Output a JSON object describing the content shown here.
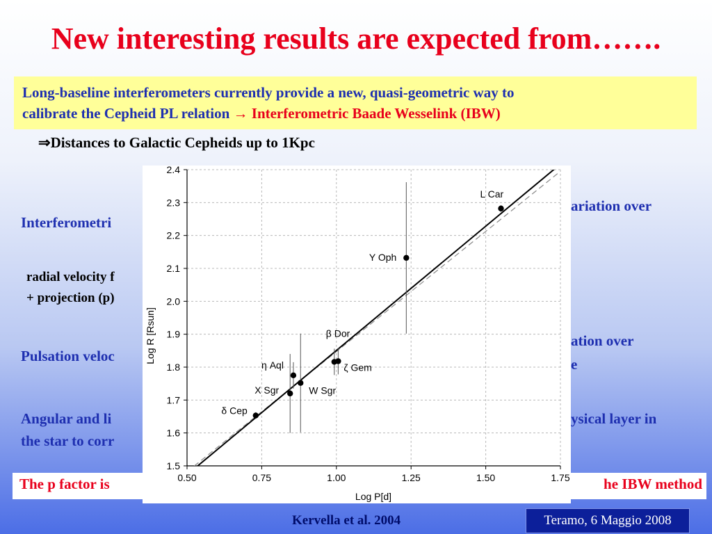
{
  "slide": {
    "title": "New interesting results are expected from…….",
    "intro_line1": "Long-baseline interferometers currently provide a new, quasi-geometric way to",
    "intro_line2_blue": "calibrate the Cepheid PL relation",
    "intro_line2_red": "→ Interferometric Baade Wesselink (IBW)",
    "distance_line": "⇒Distances to Galactic Cepheids up to 1Kpc",
    "left_frag1": "Interferometri",
    "right_frag1": "ariation over",
    "left_frag2a": "radial velocity f",
    "left_frag2b": "+ projection (p)",
    "right_frag2a": "ation over",
    "right_frag2b": "e",
    "left_frag3": "Pulsation veloc",
    "left_frag4a": "Angular and li",
    "left_frag4b": "the star to corr",
    "right_frag4": "ysical layer in",
    "pfactor_left": "The p factor is",
    "pfactor_right": "he IBW method",
    "citation": "Kervella et al. 2004",
    "footer": "Teramo, 6 Maggio 2008"
  },
  "chart_data": {
    "type": "scatter",
    "xlabel": "Log P[d]",
    "ylabel": "Log R [Rsun]",
    "xlim": [
      0.5,
      1.75
    ],
    "ylim": [
      1.5,
      2.4
    ],
    "xticks": [
      "0.50",
      "0.75",
      "1.00",
      "1.25",
      "1.50",
      "1.75"
    ],
    "yticks": [
      "1.5",
      "1.6",
      "1.7",
      "1.8",
      "1.9",
      "2.0",
      "2.1",
      "2.2",
      "2.3",
      "2.4"
    ],
    "points": [
      {
        "name": "δ Cep",
        "x": 0.73,
        "y": 1.653,
        "err": 0.01
      },
      {
        "name": "X Sgr",
        "x": 0.845,
        "y": 1.72,
        "err": 0.12
      },
      {
        "name": "η Aql",
        "x": 0.856,
        "y": 1.775,
        "err": 0.04
      },
      {
        "name": "W Sgr",
        "x": 0.88,
        "y": 1.752,
        "err": 0.15
      },
      {
        "name": "β Dor",
        "x": 0.993,
        "y": 1.816,
        "err": 0.04
      },
      {
        "name": "ζ Gem",
        "x": 1.006,
        "y": 1.818,
        "err": 0.04
      },
      {
        "name": "Y Oph",
        "x": 1.234,
        "y": 2.132,
        "err": 0.23
      },
      {
        "name": "L Car",
        "x": 1.551,
        "y": 2.282,
        "err": 0.01
      }
    ],
    "fit_solid": {
      "x": [
        0.5,
        1.75
      ],
      "y": [
        1.473,
        2.417
      ]
    },
    "fit_dashed": {
      "x": [
        0.5,
        1.75
      ],
      "y": [
        1.482,
        2.395
      ]
    },
    "grid": true
  }
}
